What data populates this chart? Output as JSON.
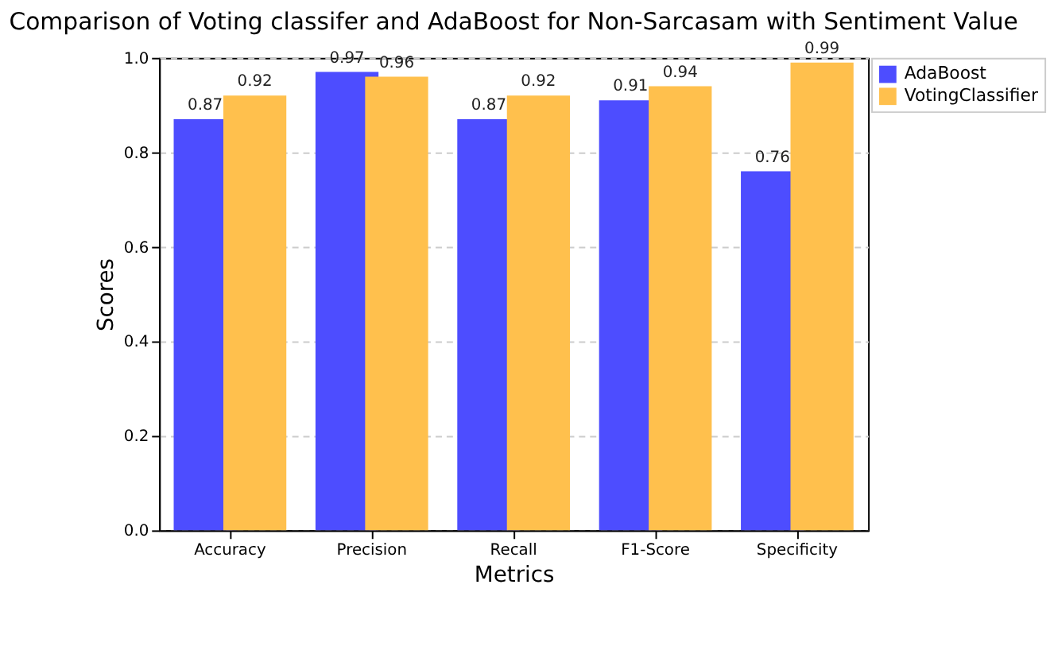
{
  "chart_data": {
    "type": "bar",
    "title": "Comparison of Voting classifer and AdaBoost for Non-Sarcasam with Sentiment Value",
    "xlabel": "Metrics",
    "ylabel": "Scores",
    "categories": [
      "Accuracy",
      "Precision",
      "Recall",
      "F1-Score",
      "Specificity"
    ],
    "series": [
      {
        "name": "AdaBoost",
        "color": "#4d4dff",
        "values": [
          0.87,
          0.97,
          0.87,
          0.91,
          0.76
        ]
      },
      {
        "name": "VotingClassifier",
        "color": "#ffc04d",
        "values": [
          0.92,
          0.96,
          0.92,
          0.94,
          0.99
        ]
      }
    ],
    "ylim": [
      0,
      1
    ],
    "yticks": [
      {
        "value": 0,
        "label": "0.0"
      },
      {
        "value": 0.2,
        "label": "0.2"
      },
      {
        "value": 0.4,
        "label": "0.4"
      },
      {
        "value": 0.6,
        "label": "0.6"
      },
      {
        "value": 0.8,
        "label": "0.8"
      },
      {
        "value": 1,
        "label": "1.0"
      }
    ],
    "data_labels": true,
    "grid": "y",
    "legend": "right"
  }
}
